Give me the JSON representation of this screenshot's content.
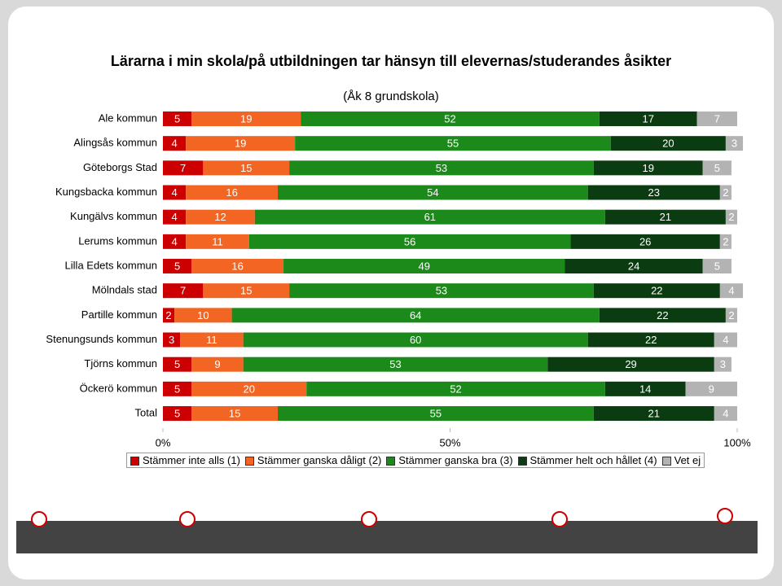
{
  "chart_data": {
    "type": "stacked-bar",
    "orientation": "horizontal",
    "title": "Lärarna i min skola/på utbildningen tar hänsyn till elevernas/studerandes åsikter",
    "subtitle": "(Åk 8 grundskola)",
    "categories": [
      "Ale kommun",
      "Alingsås kommun",
      "Göteborgs Stad",
      "Kungsbacka kommun",
      "Kungälvs kommun",
      "Lerums kommun",
      "Lilla Edets kommun",
      "Mölndals stad",
      "Partille kommun",
      "Stenungsunds kommun",
      "Tjörns kommun",
      "Öckerö kommun",
      "Total"
    ],
    "series": [
      {
        "name": "Stämmer inte alls (1)",
        "color": "#cc0000",
        "values": [
          5,
          4,
          7,
          4,
          4,
          4,
          5,
          7,
          2,
          3,
          5,
          5,
          5
        ]
      },
      {
        "name": "Stämmer ganska dåligt (2)",
        "color": "#f26522",
        "values": [
          19,
          19,
          15,
          16,
          12,
          11,
          16,
          15,
          10,
          11,
          9,
          20,
          15
        ]
      },
      {
        "name": "Stämmer ganska bra (3)",
        "color": "#1b8a1b",
        "values": [
          52,
          55,
          53,
          54,
          61,
          56,
          49,
          53,
          64,
          60,
          53,
          52,
          55
        ]
      },
      {
        "name": "Stämmer helt och hållet (4)",
        "color": "#0b3b10",
        "values": [
          17,
          20,
          19,
          23,
          21,
          26,
          24,
          22,
          22,
          22,
          29,
          14,
          21
        ]
      },
      {
        "name": "Vet ej",
        "color": "#b3b3b3",
        "values": [
          7,
          3,
          5,
          2,
          2,
          2,
          5,
          4,
          2,
          4,
          3,
          9,
          4
        ]
      }
    ],
    "xlim": [
      0,
      100
    ],
    "xticks": [
      {
        "value": 0,
        "label": "0%"
      },
      {
        "value": 50,
        "label": "50%"
      },
      {
        "value": 100,
        "label": "100%"
      }
    ]
  }
}
